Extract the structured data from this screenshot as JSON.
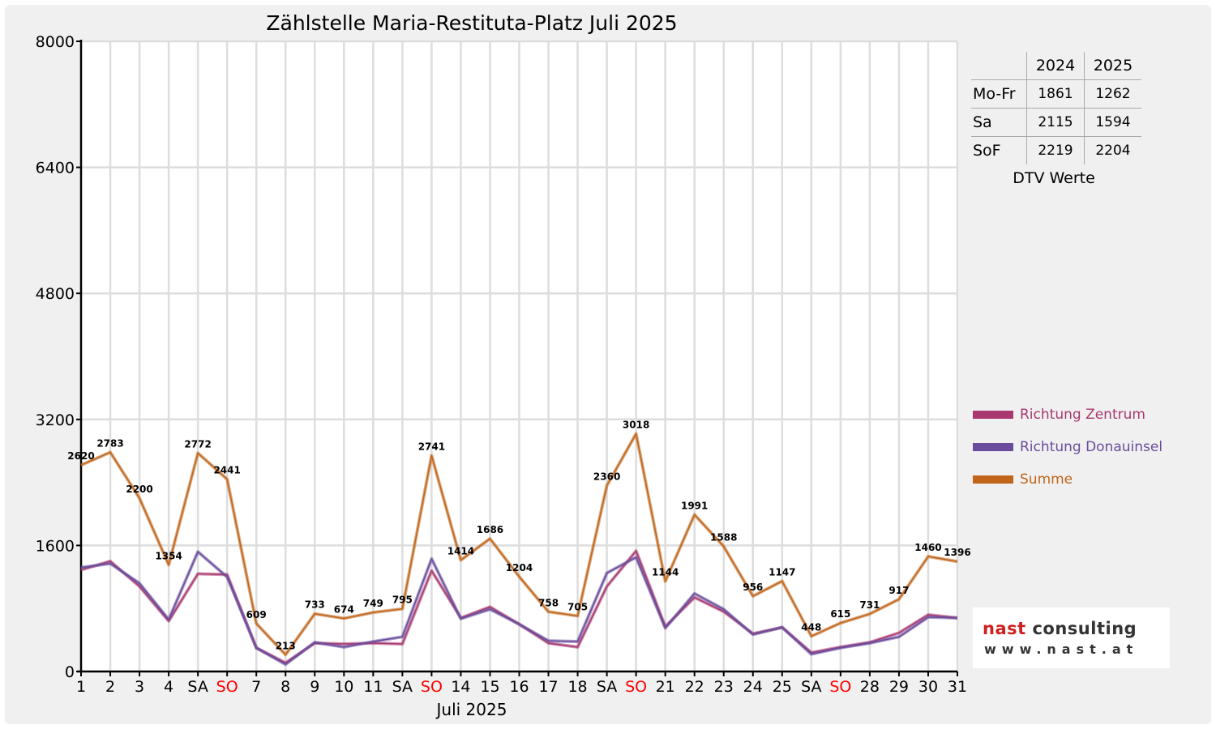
{
  "chart_data": {
    "type": "line",
    "title": "Zählstelle Maria-Restituta-Platz Juli 2025",
    "xlabel": "Juli 2025",
    "ylabel": "",
    "ylim": [
      0,
      8000
    ],
    "yticks": [
      0,
      1600,
      3200,
      4800,
      6400,
      8000
    ],
    "grid": true,
    "legend_position": "right",
    "categories": [
      "1",
      "2",
      "3",
      "4",
      "SA",
      "SO",
      "7",
      "8",
      "9",
      "10",
      "11",
      "SA",
      "SO",
      "14",
      "15",
      "16",
      "17",
      "18",
      "SA",
      "SO",
      "21",
      "22",
      "23",
      "24",
      "25",
      "SA",
      "SO",
      "28",
      "29",
      "30",
      "31"
    ],
    "weekend_sunday_color": "#ff0000",
    "series": [
      {
        "name": "Richtung Zentrum",
        "color": "#a8386f",
        "values": [
          1290,
          1400,
          1080,
          640,
          1240,
          1230,
          300,
          110,
          360,
          350,
          360,
          350,
          1280,
          680,
          820,
          600,
          360,
          310,
          1080,
          1530,
          570,
          940,
          760,
          480,
          560,
          240,
          310,
          370,
          490,
          720,
          680
        ]
      },
      {
        "name": "Richtung Donauinsel",
        "color": "#6a4c9c",
        "values": [
          1320,
          1370,
          1120,
          660,
          1520,
          1200,
          300,
          90,
          370,
          310,
          380,
          440,
          1430,
          670,
          790,
          600,
          390,
          380,
          1250,
          1450,
          550,
          990,
          790,
          470,
          560,
          220,
          300,
          360,
          440,
          690,
          680
        ]
      },
      {
        "name": "Summe",
        "color": "#c0651a",
        "values": [
          2620,
          2783,
          2200,
          1354,
          2772,
          2441,
          609,
          213,
          733,
          674,
          749,
          795,
          2741,
          1414,
          1686,
          1204,
          758,
          705,
          2360,
          3018,
          1144,
          1991,
          1588,
          956,
          1147,
          448,
          615,
          731,
          917,
          1460,
          1396
        ]
      }
    ]
  },
  "dtv_table": {
    "years": [
      "2024",
      "2025"
    ],
    "rows": [
      {
        "label": "Mo-Fr",
        "v2024": "1861",
        "v2025": "1262"
      },
      {
        "label": "Sa",
        "v2024": "2115",
        "v2025": "1594"
      },
      {
        "label": "SoF",
        "v2024": "2219",
        "v2025": "2204"
      }
    ],
    "caption": "DTV Werte"
  },
  "logo": {
    "line1_a": "nast",
    "line1_b": "consulting",
    "line2": "www.nast.at"
  }
}
